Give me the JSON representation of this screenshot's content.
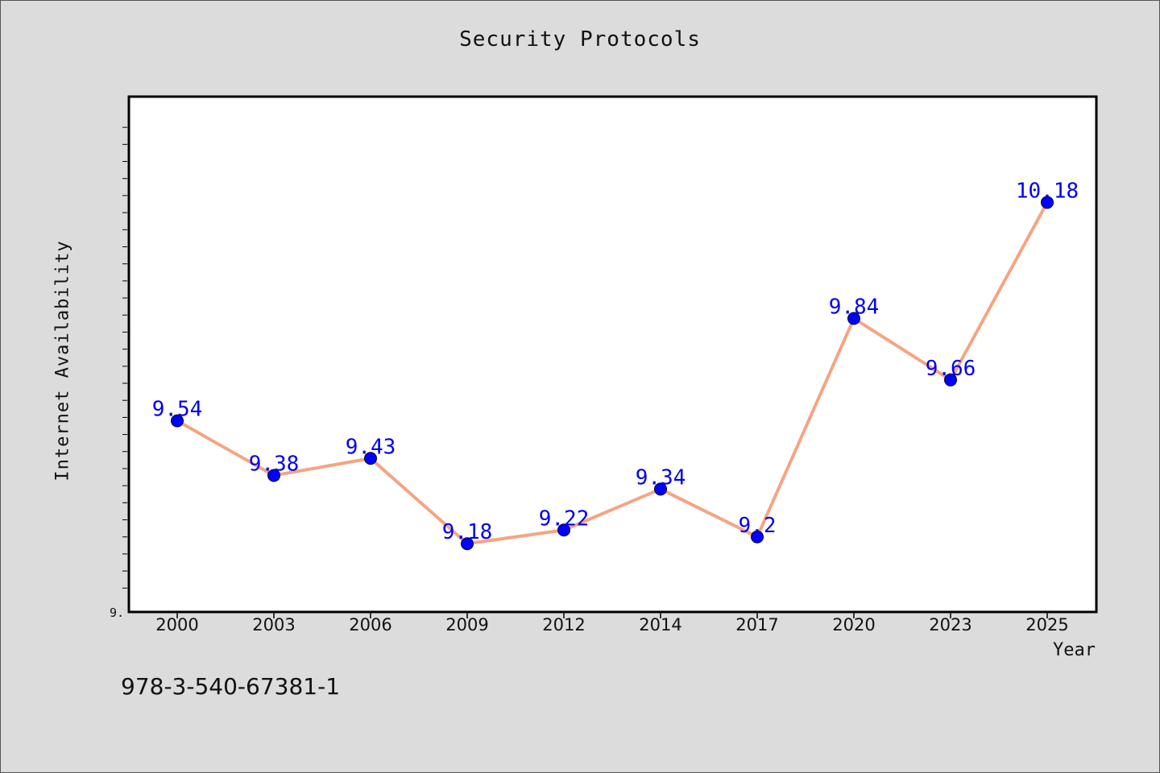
{
  "chart_data": {
    "type": "line",
    "title": "Security Protocols",
    "xlabel": "Year",
    "ylabel": "Internet Availability",
    "categories": [
      "2000",
      "2003",
      "2006",
      "2009",
      "2012",
      "2014",
      "2017",
      "2020",
      "2023",
      "2025"
    ],
    "series": [
      {
        "values": [
          9.54,
          9.38,
          9.43,
          9.18,
          9.22,
          9.34,
          9.2,
          9.84,
          9.66,
          10.18
        ],
        "line_color": "#f4a582",
        "marker_color": "#0000ff",
        "label_color": "#0000ee"
      }
    ],
    "y_tick_labels": [
      "9."
    ],
    "ylim": [
      8.98,
      10.49
    ],
    "grid": false
  },
  "footnote": "978-3-540-67381-1"
}
